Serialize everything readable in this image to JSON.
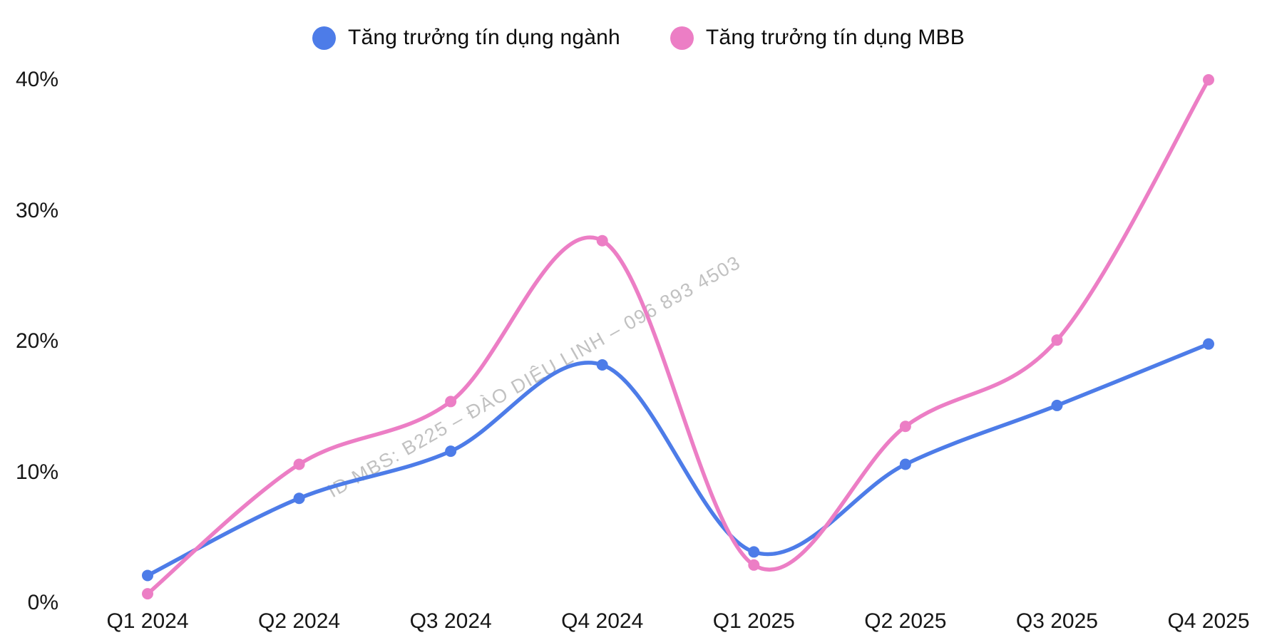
{
  "legend": [
    {
      "label": "Tăng trưởng tín dụng ngành",
      "color": "#4d7ce8"
    },
    {
      "label": "Tăng trưởng tín dụng MBB",
      "color": "#ec7ec5"
    }
  ],
  "watermark": "ID MBS: B225 – ĐÀO DIỆU LINH – 096 893 4503",
  "colors": {
    "series_industry": "#4d7ce8",
    "series_mbb": "#ec7ec5",
    "watermark": "#bcbcbc",
    "tick_text": "#161616"
  },
  "chart_data": {
    "type": "line",
    "title": "",
    "xlabel": "",
    "ylabel": "",
    "categories": [
      "Q1 2024",
      "Q2 2024",
      "Q3 2024",
      "Q4 2024",
      "Q1 2025",
      "Q2 2025",
      "Q3 2025",
      "Q4 2025"
    ],
    "series": [
      {
        "name": "Tăng trưởng tín dụng ngành",
        "color": "#4d7ce8",
        "values": [
          2.1,
          8.0,
          11.6,
          18.2,
          3.9,
          10.6,
          15.1,
          19.8
        ]
      },
      {
        "name": "Tăng trưởng tín dụng MBB",
        "color": "#ec7ec5",
        "values": [
          0.7,
          10.6,
          15.4,
          27.7,
          2.9,
          13.5,
          20.1,
          40.0
        ]
      }
    ],
    "ylim": [
      0,
      40
    ],
    "ytick_values": [
      0,
      10,
      20,
      30,
      40
    ],
    "yticks": [
      "0%",
      "10%",
      "20%",
      "30%",
      "40%"
    ],
    "grid": false,
    "legend_position": "top",
    "smooth": true,
    "markers": true
  }
}
